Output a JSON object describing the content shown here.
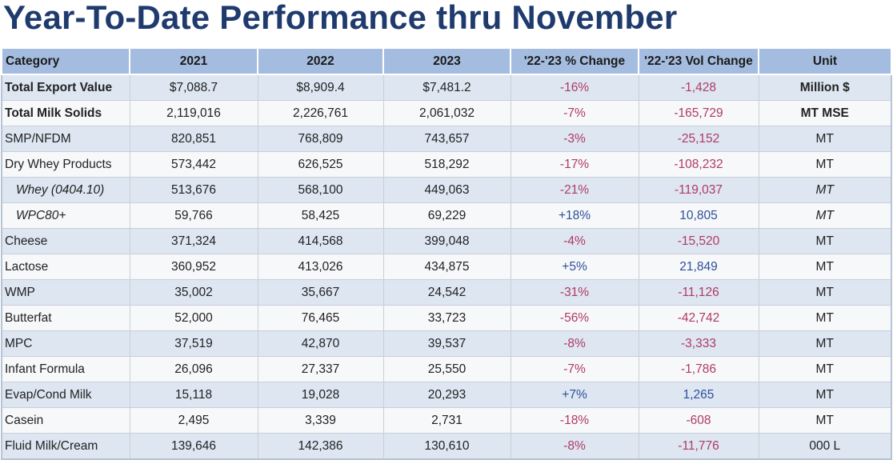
{
  "title": "Year-To-Date Performance thru November",
  "header": {
    "category": "Category",
    "y2021": "2021",
    "y2022": "2022",
    "y2023": "2023",
    "pct_change": "'22-'23 % Change",
    "vol_change": "'22-'23 Vol Change",
    "unit": "Unit"
  },
  "colors": {
    "negative": "#b03a64",
    "positive": "#2e4f98",
    "header_bg": "#a4bcdf",
    "title": "#1f3b6e"
  },
  "rows": [
    {
      "category": "Total Export Value",
      "y2021": "$7,088.7",
      "y2022": "$8,909.4",
      "y2023": "$7,481.2",
      "pct": "-16%",
      "vol": "-1,428",
      "unit": "Million $"
    },
    {
      "category": "Total Milk Solids",
      "y2021": "2,119,016",
      "y2022": "2,226,761",
      "y2023": "2,061,032",
      "pct": "-7%",
      "vol": "-165,729",
      "unit": "MT MSE"
    },
    {
      "category": "SMP/NFDM",
      "y2021": "820,851",
      "y2022": "768,809",
      "y2023": "743,657",
      "pct": "-3%",
      "vol": "-25,152",
      "unit": "MT"
    },
    {
      "category": "Dry Whey Products",
      "y2021": "573,442",
      "y2022": "626,525",
      "y2023": "518,292",
      "pct": "-17%",
      "vol": "-108,232",
      "unit": "MT"
    },
    {
      "category": "Whey (0404.10)",
      "y2021": "513,676",
      "y2022": "568,100",
      "y2023": "449,063",
      "pct": "-21%",
      "vol": "-119,037",
      "unit": "MT"
    },
    {
      "category": "WPC80+",
      "y2021": "59,766",
      "y2022": "58,425",
      "y2023": "69,229",
      "pct": "+18%",
      "vol": "10,805",
      "unit": "MT"
    },
    {
      "category": "Cheese",
      "y2021": "371,324",
      "y2022": "414,568",
      "y2023": "399,048",
      "pct": "-4%",
      "vol": "-15,520",
      "unit": "MT"
    },
    {
      "category": "Lactose",
      "y2021": "360,952",
      "y2022": "413,026",
      "y2023": "434,875",
      "pct": "+5%",
      "vol": "21,849",
      "unit": "MT"
    },
    {
      "category": "WMP",
      "y2021": "35,002",
      "y2022": "35,667",
      "y2023": "24,542",
      "pct": "-31%",
      "vol": "-11,126",
      "unit": "MT"
    },
    {
      "category": "Butterfat",
      "y2021": "52,000",
      "y2022": "76,465",
      "y2023": "33,723",
      "pct": "-56%",
      "vol": "-42,742",
      "unit": "MT"
    },
    {
      "category": "MPC",
      "y2021": "37,519",
      "y2022": "42,870",
      "y2023": "39,537",
      "pct": "-8%",
      "vol": "-3,333",
      "unit": "MT"
    },
    {
      "category": "Infant Formula",
      "y2021": "26,096",
      "y2022": "27,337",
      "y2023": "25,550",
      "pct": "-7%",
      "vol": "-1,786",
      "unit": "MT"
    },
    {
      "category": "Evap/Cond Milk",
      "y2021": "15,118",
      "y2022": "19,028",
      "y2023": "20,293",
      "pct": "+7%",
      "vol": "1,265",
      "unit": "MT"
    },
    {
      "category": "Casein",
      "y2021": "2,495",
      "y2022": "3,339",
      "y2023": "2,731",
      "pct": "-18%",
      "vol": "-608",
      "unit": "MT"
    },
    {
      "category": "Fluid Milk/Cream",
      "y2021": "139,646",
      "y2022": "142,386",
      "y2023": "130,610",
      "pct": "-8%",
      "vol": "-11,776",
      "unit": "000 L"
    }
  ]
}
